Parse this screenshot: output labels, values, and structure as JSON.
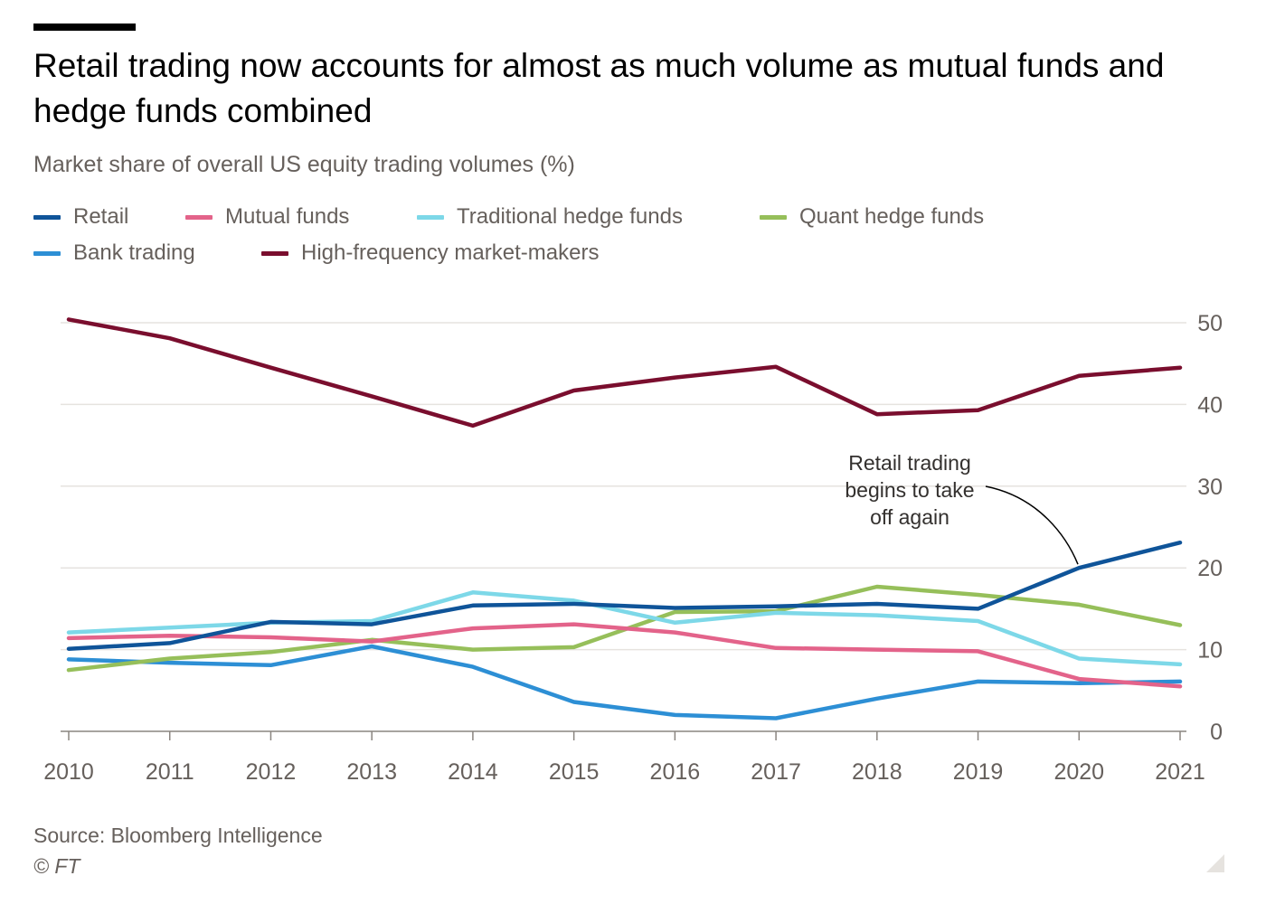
{
  "title": "Retail trading now accounts for almost as much volume as mutual funds and hedge funds combined",
  "subtitle": "Market share of overall US equity trading volumes (%)",
  "source": "Source: Bloomberg Intelligence",
  "copyright": "© FT",
  "colors": {
    "gridline": "#e6e3df",
    "axis": "#8a8580",
    "tick_text": "#66605c"
  },
  "chart_data": {
    "type": "line",
    "title": "Retail trading now accounts for almost as much volume as mutual funds and hedge funds combined",
    "subtitle": "Market share of overall US equity trading volumes (%)",
    "xlabel": "",
    "ylabel": "",
    "x": [
      2010,
      2011,
      2012,
      2013,
      2014,
      2015,
      2016,
      2017,
      2018,
      2019,
      2020,
      2021
    ],
    "ylim": [
      0,
      50
    ],
    "yticks": [
      0,
      10,
      20,
      30,
      40,
      50
    ],
    "grid": true,
    "y_axis_side": "right",
    "legend_position": "top",
    "series": [
      {
        "name": "Retail",
        "color": "#0f5499",
        "values": [
          10.1,
          10.8,
          13.4,
          13.1,
          15.4,
          15.6,
          15.1,
          15.3,
          15.6,
          15.0,
          20.0,
          23.1
        ]
      },
      {
        "name": "Mutual funds",
        "color": "#e3638a",
        "values": [
          11.4,
          11.7,
          11.5,
          11.0,
          12.6,
          13.1,
          12.1,
          10.2,
          10.0,
          9.8,
          6.4,
          5.5
        ]
      },
      {
        "name": "Traditional hedge funds",
        "color": "#7dd8e8",
        "values": [
          12.1,
          12.7,
          13.3,
          13.5,
          17.0,
          16.0,
          13.3,
          14.5,
          14.2,
          13.5,
          8.9,
          8.2
        ]
      },
      {
        "name": "Quant hedge funds",
        "color": "#96bf5a",
        "values": [
          7.5,
          8.9,
          9.7,
          11.2,
          10.0,
          10.3,
          14.6,
          14.7,
          17.7,
          16.7,
          15.5,
          13.0
        ]
      },
      {
        "name": "Bank trading",
        "color": "#2d8fd5",
        "values": [
          8.8,
          8.4,
          8.1,
          10.4,
          7.9,
          3.6,
          2.0,
          1.6,
          4.0,
          6.1,
          5.9,
          6.1
        ]
      },
      {
        "name": "High-frequency market-makers",
        "color": "#7a0e2e",
        "values": [
          50.4,
          48.1,
          44.5,
          41.0,
          37.4,
          41.7,
          43.3,
          44.6,
          38.8,
          39.3,
          43.5,
          44.5
        ]
      }
    ],
    "annotations": [
      {
        "text_lines": [
          "Retail trading",
          "begins to take",
          "off again"
        ],
        "points_to": {
          "series": "Retail",
          "x": 2020,
          "y": 20.0
        }
      }
    ]
  }
}
